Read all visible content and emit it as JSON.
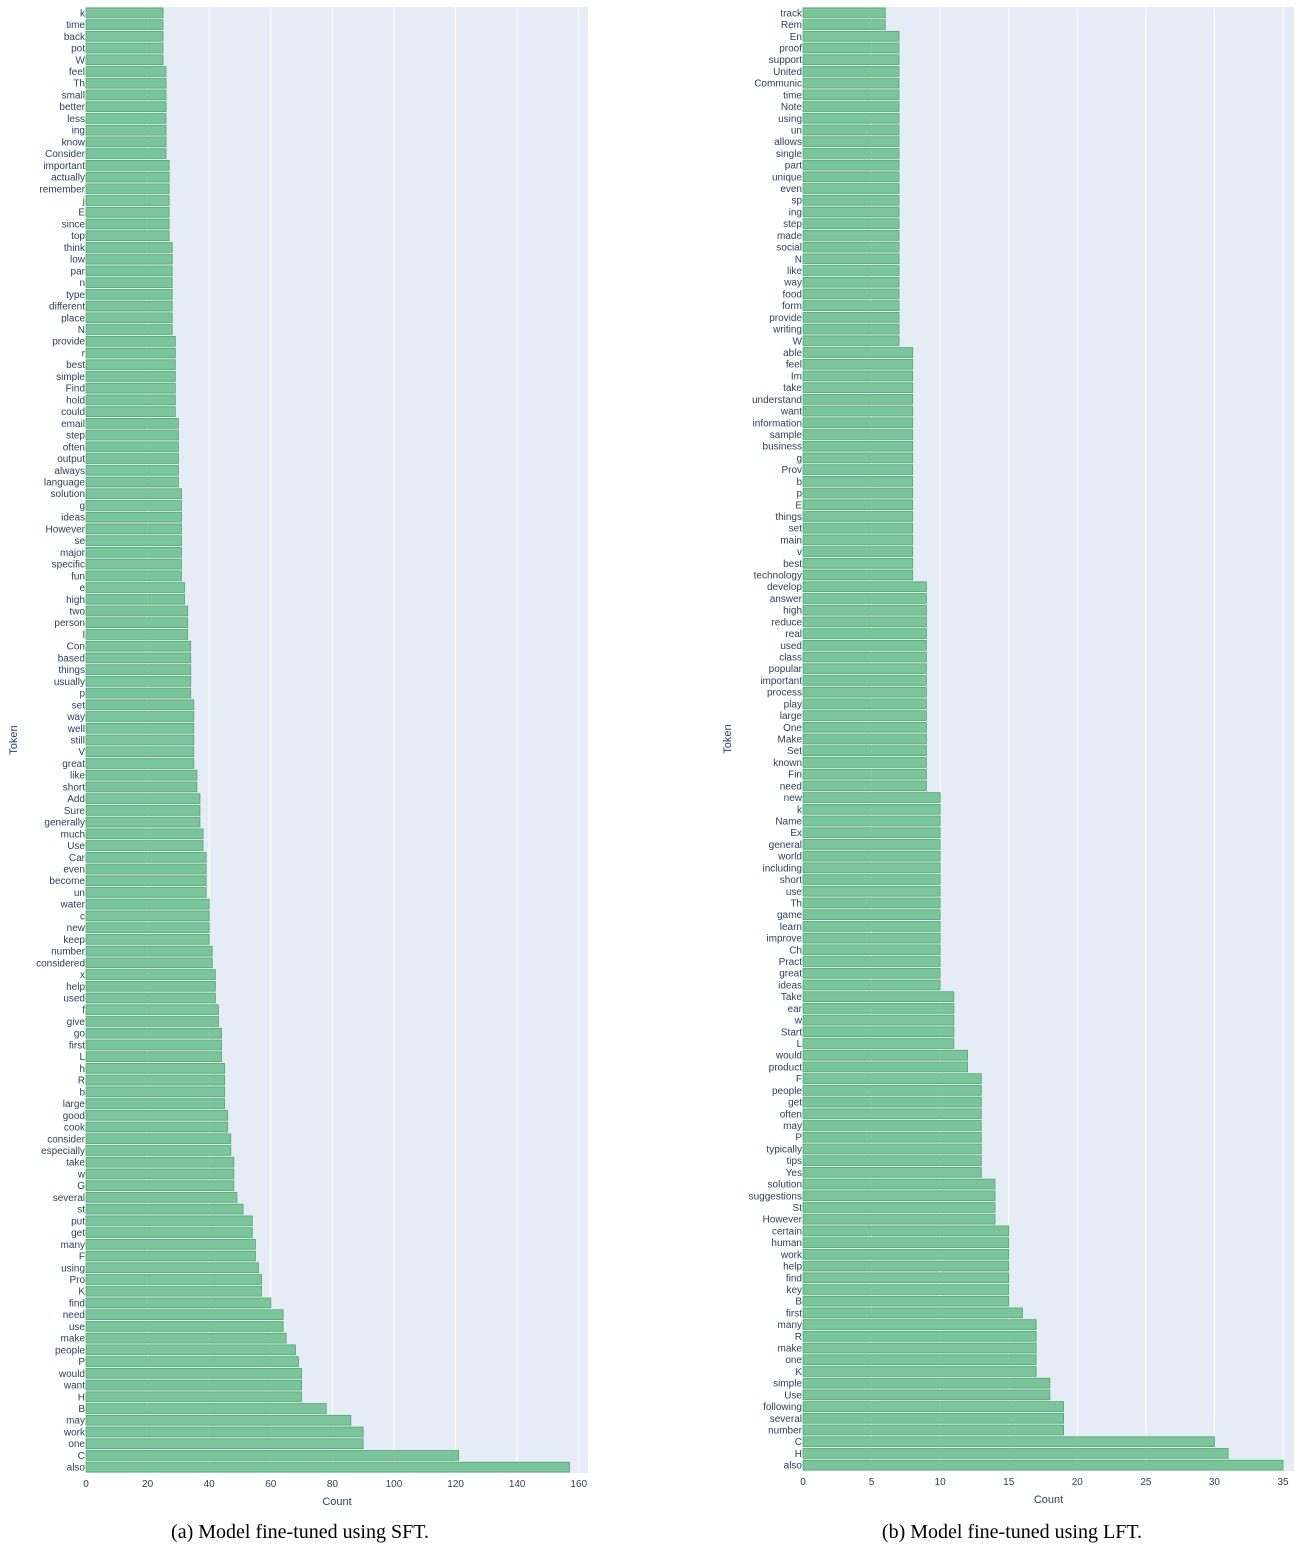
{
  "chart_data": [
    {
      "type": "bar",
      "orientation": "horizontal",
      "caption": "(a) Model fine-tuned using SFT.",
      "xlabel": "Count",
      "ylabel": "Token",
      "xlim": [
        0,
        163
      ],
      "xticks": [
        0,
        20,
        40,
        60,
        80,
        100,
        120,
        140,
        160
      ],
      "grid": true,
      "bar_color": "#7ac59a",
      "bar_edge_color": "#4fa873",
      "plot_bg": "#e5ecf6",
      "categories": [
        "k",
        "time",
        "back",
        "pot",
        "W",
        "feel",
        "Th",
        "small",
        "better",
        "less",
        "ing",
        "know",
        "Consider",
        "important",
        "actually",
        "remember",
        "j",
        "E",
        "since",
        "top",
        "think",
        "low",
        "par",
        "n",
        "type",
        "different",
        "place",
        "N",
        "provide",
        "r",
        "best",
        "simple",
        "Find",
        "hold",
        "could",
        "email",
        "step",
        "often",
        "output",
        "always",
        "language",
        "solution",
        "g",
        "ideas",
        "However",
        "se",
        "major",
        "specific",
        "fun",
        "e",
        "high",
        "two",
        "person",
        "l",
        "Con",
        "based",
        "things",
        "usually",
        "p",
        "set",
        "way",
        "well",
        "still",
        "V",
        "great",
        "like",
        "short",
        "Add",
        "Sure",
        "generally",
        "much",
        "Use",
        "Car",
        "even",
        "become",
        "un",
        "water",
        "c",
        "new",
        "keep",
        "number",
        "considered",
        "x",
        "help",
        "used",
        "f",
        "give",
        "go",
        "first",
        "L",
        "h",
        "R",
        "b",
        "large",
        "good",
        "cook",
        "consider",
        "especially",
        "take",
        "w",
        "G",
        "several",
        "st",
        "put",
        "get",
        "many",
        "F",
        "using",
        "Pro",
        "K",
        "find",
        "need",
        "use",
        "make",
        "people",
        "P",
        "would",
        "want",
        "H",
        "B",
        "may",
        "work",
        "one",
        "C",
        "also"
      ],
      "values": [
        25,
        25,
        25,
        25,
        25,
        26,
        26,
        26,
        26,
        26,
        26,
        26,
        26,
        27,
        27,
        27,
        27,
        27,
        27,
        27,
        28,
        28,
        28,
        28,
        28,
        28,
        28,
        28,
        29,
        29,
        29,
        29,
        29,
        29,
        29,
        30,
        30,
        30,
        30,
        30,
        30,
        31,
        31,
        31,
        31,
        31,
        31,
        31,
        31,
        32,
        32,
        33,
        33,
        33,
        34,
        34,
        34,
        34,
        34,
        35,
        35,
        35,
        35,
        35,
        35,
        36,
        36,
        37,
        37,
        37,
        38,
        38,
        39,
        39,
        39,
        39,
        40,
        40,
        40,
        40,
        41,
        41,
        42,
        42,
        42,
        43,
        43,
        44,
        44,
        44,
        45,
        45,
        45,
        45,
        46,
        46,
        47,
        47,
        48,
        48,
        48,
        49,
        51,
        54,
        54,
        55,
        55,
        56,
        57,
        57,
        60,
        64,
        64,
        65,
        68,
        69,
        70,
        70,
        70,
        78,
        86,
        90,
        90,
        121,
        157
      ]
    },
    {
      "type": "bar",
      "orientation": "horizontal",
      "caption": "(b) Model fine-tuned using LFT.",
      "xlabel": "Count",
      "ylabel": "Token",
      "xlim": [
        0,
        35.8
      ],
      "xticks": [
        0,
        5,
        10,
        15,
        20,
        25,
        30,
        35
      ],
      "grid": true,
      "bar_color": "#7ac59a",
      "bar_edge_color": "#4fa873",
      "plot_bg": "#e5ecf6",
      "categories": [
        "track",
        "Rem",
        "En",
        "proof",
        "support",
        "United",
        "Communic",
        "time",
        "Note",
        "using",
        "un",
        "allows",
        "single",
        "part",
        "unique",
        "even",
        "sp",
        "ing",
        "step",
        "made",
        "social",
        "N",
        "like",
        "way",
        "food",
        "form",
        "provide",
        "writing",
        "W",
        "able",
        "feel",
        "Im",
        "take",
        "understand",
        "want",
        "information",
        "sample",
        "business",
        "g",
        "Prov",
        "b",
        "p",
        "E",
        "things",
        "set",
        "main",
        "v",
        "best",
        "technology",
        "develop",
        "answer",
        "high",
        "reduce",
        "real",
        "used",
        "class",
        "popular",
        "important",
        "process",
        "play",
        "large",
        "One",
        "Make",
        "Set",
        "known",
        "Fin",
        "need",
        "new",
        "k",
        "Name",
        "Ex",
        "general",
        "world",
        "including",
        "short",
        "use",
        "Th",
        "game",
        "learn",
        "improve",
        "Ch",
        "Pract",
        "great",
        "ideas",
        "Take",
        "ear",
        "w",
        "Start",
        "L",
        "would",
        "product",
        "F",
        "people",
        "get",
        "often",
        "may",
        "P",
        "typically",
        "tips",
        "Yes",
        "solution",
        "suggestions",
        "St",
        "However",
        "certain",
        "human",
        "work",
        "help",
        "find",
        "key",
        "B",
        "first",
        "many",
        "R",
        "make",
        "one",
        "K",
        "simple",
        "Use",
        "following",
        "several",
        "number",
        "C",
        "H",
        "also"
      ],
      "values": [
        6,
        6,
        7,
        7,
        7,
        7,
        7,
        7,
        7,
        7,
        7,
        7,
        7,
        7,
        7,
        7,
        7,
        7,
        7,
        7,
        7,
        7,
        7,
        7,
        7,
        7,
        7,
        7,
        7,
        8,
        8,
        8,
        8,
        8,
        8,
        8,
        8,
        8,
        8,
        8,
        8,
        8,
        8,
        8,
        8,
        8,
        8,
        8,
        8,
        9,
        9,
        9,
        9,
        9,
        9,
        9,
        9,
        9,
        9,
        9,
        9,
        9,
        9,
        9,
        9,
        9,
        9,
        10,
        10,
        10,
        10,
        10,
        10,
        10,
        10,
        10,
        10,
        10,
        10,
        10,
        10,
        10,
        10,
        10,
        11,
        11,
        11,
        11,
        11,
        12,
        12,
        13,
        13,
        13,
        13,
        13,
        13,
        13,
        13,
        13,
        14,
        14,
        14,
        14,
        15,
        15,
        15,
        15,
        15,
        15,
        15,
        16,
        17,
        17,
        17,
        17,
        17,
        18,
        18,
        19,
        19,
        19,
        30,
        31,
        35
      ]
    }
  ]
}
